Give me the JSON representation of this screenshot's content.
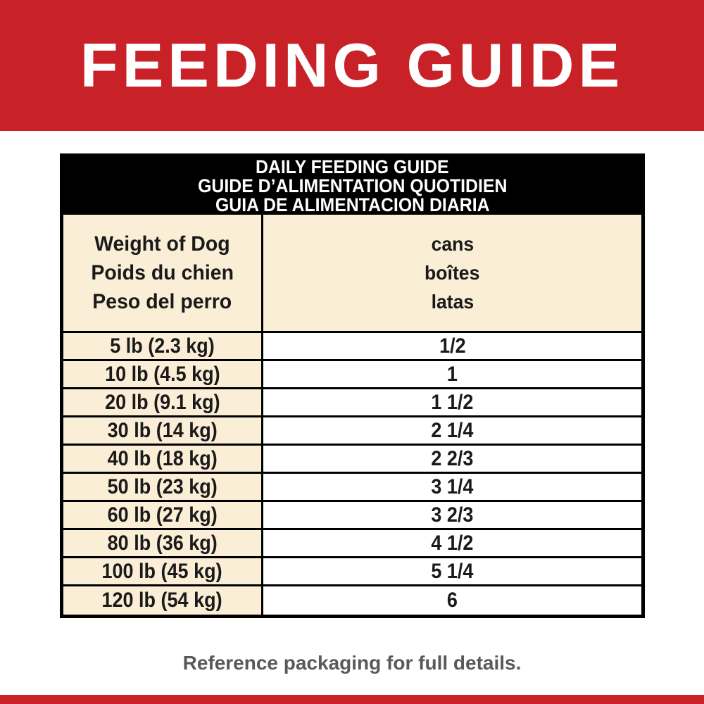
{
  "banner": {
    "title": "FEEDING GUIDE",
    "bg_color": "#c92128",
    "text_color": "#ffffff"
  },
  "table": {
    "title_lines": [
      "DAILY FEEDING GUIDE",
      "GUIDE D’ALIMENTATION QUOTIDIEN",
      "GUIA DE ALIMENTACION DIARIA"
    ],
    "column_headers": {
      "weight": [
        "Weight of Dog",
        "Poids du chien",
        "Peso del perro"
      ],
      "cans": [
        "cans",
        "boîtes",
        "latas"
      ]
    },
    "rows": [
      {
        "weight": "5 lb (2.3 kg)",
        "cans": "1/2"
      },
      {
        "weight": "10 lb (4.5 kg)",
        "cans": "1"
      },
      {
        "weight": "20 lb (9.1 kg)",
        "cans": "1 1/2"
      },
      {
        "weight": "30 lb (14 kg)",
        "cans": "2 1/4"
      },
      {
        "weight": "40 lb (18 kg)",
        "cans": "2 2/3"
      },
      {
        "weight": "50 lb (23 kg)",
        "cans": "3 1/4"
      },
      {
        "weight": "60 lb (27 kg)",
        "cans": "3 2/3"
      },
      {
        "weight": "80 lb (36 kg)",
        "cans": "4 1/2"
      },
      {
        "weight": "100 lb (45 kg)",
        "cans": "5 1/4"
      },
      {
        "weight": "120 lb (54 kg)",
        "cans": "6"
      }
    ],
    "colors": {
      "title_bg": "#000000",
      "title_text": "#ffffff",
      "cell_cream": "#fbeed6",
      "cell_white": "#ffffff",
      "border": "#000000"
    }
  },
  "footer": {
    "note": "Reference packaging for full details.",
    "text_color": "#58595b"
  },
  "bottom_strip_color": "#c92128"
}
